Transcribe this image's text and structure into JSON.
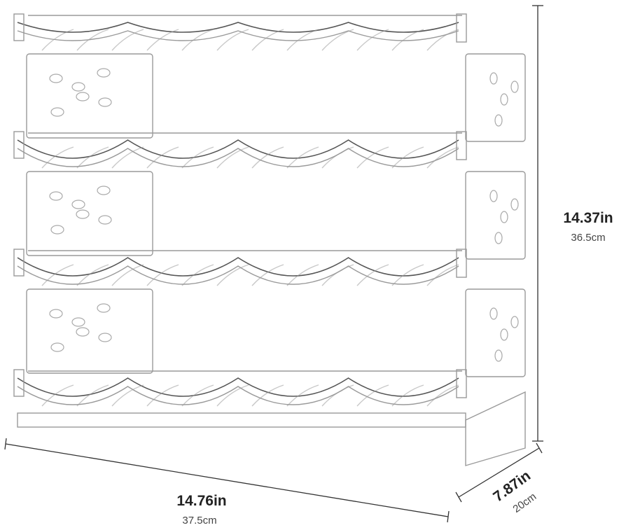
{
  "dimensions": {
    "height": {
      "imperial": "14.37in",
      "metric": "36.5cm"
    },
    "width": {
      "imperial": "14.76in",
      "metric": "37.5cm"
    },
    "depth": {
      "imperial": "7.87in",
      "metric": "20cm"
    }
  }
}
